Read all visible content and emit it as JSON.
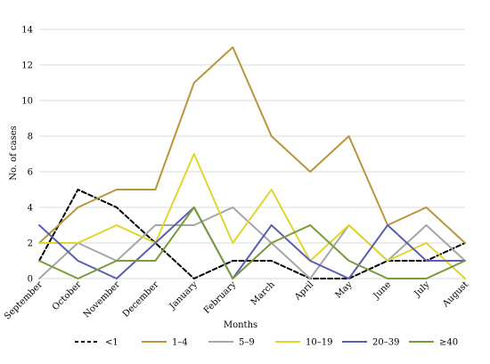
{
  "chart_data": {
    "type": "line",
    "title": "",
    "xlabel": "Months",
    "ylabel": "No. of cases",
    "ylim": [
      0,
      14
    ],
    "yticks": [
      0,
      2,
      4,
      6,
      8,
      10,
      12,
      14
    ],
    "grid": true,
    "legend_position": "bottom",
    "categories": [
      "September",
      "October",
      "November",
      "December",
      "January",
      "February",
      "March",
      "April",
      "May",
      "June",
      "July",
      "August"
    ],
    "series": [
      {
        "name": "<1",
        "color": "#000000",
        "dashed": true,
        "values": [
          1,
          5,
          4,
          2,
          0,
          1,
          1,
          0,
          0,
          1,
          1,
          2
        ]
      },
      {
        "name": "1–4",
        "color": "#b8963e",
        "dashed": false,
        "values": [
          2,
          4,
          5,
          5,
          11,
          13,
          8,
          6,
          8,
          3,
          4,
          2
        ]
      },
      {
        "name": "5–9",
        "color": "#a6a6a6",
        "dashed": false,
        "values": [
          0,
          2,
          1,
          3,
          3,
          4,
          2,
          0,
          3,
          1,
          3,
          1
        ]
      },
      {
        "name": "10–19",
        "color": "#e1d530",
        "dashed": false,
        "values": [
          2,
          2,
          3,
          2,
          7,
          2,
          5,
          1,
          3,
          1,
          2,
          0
        ]
      },
      {
        "name": "20–39",
        "color": "#5a5fb0",
        "dashed": false,
        "values": [
          3,
          1,
          0,
          2,
          4,
          0,
          3,
          1,
          0,
          3,
          1,
          1
        ]
      },
      {
        "name": "≥40",
        "color": "#7a9a3c",
        "dashed": false,
        "values": [
          1,
          0,
          1,
          1,
          4,
          0,
          2,
          3,
          1,
          0,
          0,
          1
        ]
      }
    ]
  }
}
